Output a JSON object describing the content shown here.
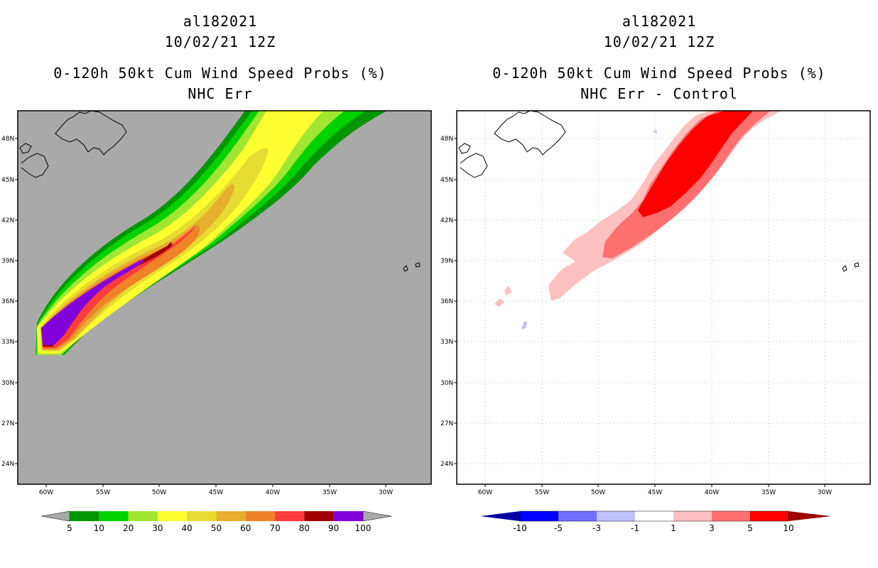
{
  "left_panel": {
    "title_lines": [
      "al182021",
      "10/02/21 12Z",
      "0-120h 50kt Cum Wind Speed Probs (%)",
      "NHC Err"
    ],
    "background_color": "#a9a9a9",
    "colorbar": {
      "labels": [
        "5",
        "10",
        "20",
        "30",
        "40",
        "50",
        "60",
        "70",
        "80",
        "90",
        "100"
      ],
      "colors": [
        "#009600",
        "#00d200",
        "#a0e632",
        "#ffff32",
        "#e6dc32",
        "#e6af2d",
        "#f08228",
        "#fa3c3c",
        "#a00000",
        "#8200dc"
      ]
    }
  },
  "right_panel": {
    "title_lines": [
      "al182021",
      "10/02/21 12Z",
      "0-120h 50kt Cum Wind Speed Probs (%)",
      "NHC Err - Control"
    ],
    "background_color": "#ffffff",
    "colorbar": {
      "labels": [
        "-10",
        "-5",
        "-3",
        "-1",
        "1",
        "3",
        "5",
        "10"
      ],
      "colors": [
        "#0000a0",
        "#0000ff",
        "#7070ff",
        "#c0c0ff",
        "#ffffff",
        "#ffc0c0",
        "#ff7070",
        "#ff0000"
      ],
      "tail_left": "#0000a0",
      "tail_right": "#a00000"
    }
  },
  "axes": {
    "lat_labels": [
      "48N",
      "45N",
      "42N",
      "39N",
      "36N",
      "33N",
      "30N",
      "27N",
      "24N"
    ],
    "lon_labels": [
      "60W",
      "55W",
      "50W",
      "45W",
      "40W",
      "35W",
      "30W"
    ]
  }
}
